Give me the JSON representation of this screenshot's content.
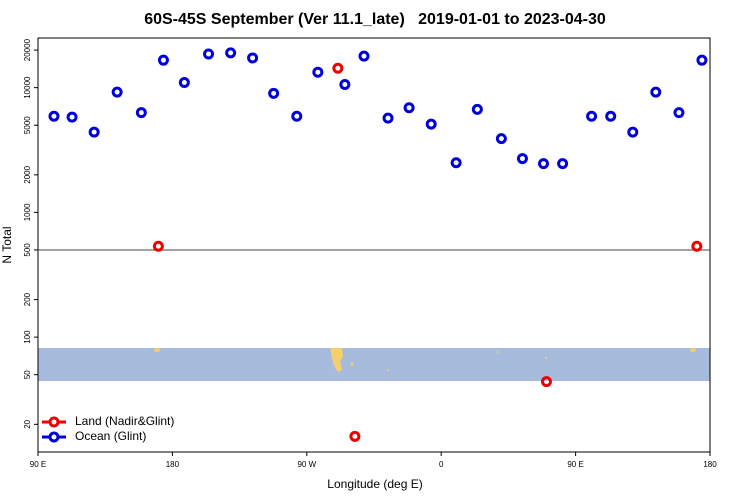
{
  "chart_data": {
    "type": "scatter",
    "title": "60S-45S September (Ver 11.1_late)   2019-01-01 to 2023-04-30",
    "x_label": "Longitude (deg E)",
    "y_label": "N Total",
    "log_y": true,
    "xlim": [
      90,
      540
    ],
    "ylim": [
      12,
      25000
    ],
    "xticks": [
      {
        "value": 90,
        "label": "90 E"
      },
      {
        "value": 180,
        "label": "180"
      },
      {
        "value": 270,
        "label": "90 W"
      },
      {
        "value": 360,
        "label": "0"
      },
      {
        "value": 450,
        "label": "90 E"
      },
      {
        "value": 540,
        "label": "180"
      }
    ],
    "yticks": [
      20,
      50,
      100,
      200,
      500,
      1000,
      2000,
      5000,
      10000,
      20000
    ],
    "reference_line": 500,
    "legend": "lower left",
    "series": [
      {
        "name": "Land (Nadir&Glint)",
        "color": "#ee0000",
        "x": [
          170.6,
          290.8,
          302.2,
          430.5,
          531.2
        ],
        "values": [
          535,
          14300,
          16,
          44,
          535
        ]
      },
      {
        "name": "Ocean (Glint)",
        "color": "#0000dd",
        "x": [
          100.7,
          112.8,
          127.6,
          143,
          159.2,
          174,
          188,
          204.2,
          219,
          233.7,
          247.8,
          263.3,
          277.4,
          295.5,
          308.3,
          324.4,
          338.5,
          353.3,
          370,
          384.2,
          400.3,
          414.4,
          428.5,
          441.3,
          460.7,
          473.5,
          488.3,
          503.7,
          519.2,
          534.6
        ],
        "values": [
          5900,
          5800,
          4400,
          9200,
          6300,
          16600,
          11000,
          18600,
          19000,
          17300,
          9000,
          5900,
          13300,
          10600,
          17900,
          5700,
          6900,
          5100,
          2500,
          6700,
          3900,
          2700,
          2460,
          2460,
          5900,
          5900,
          4400,
          9200,
          6300,
          16600
        ]
      }
    ]
  }
}
